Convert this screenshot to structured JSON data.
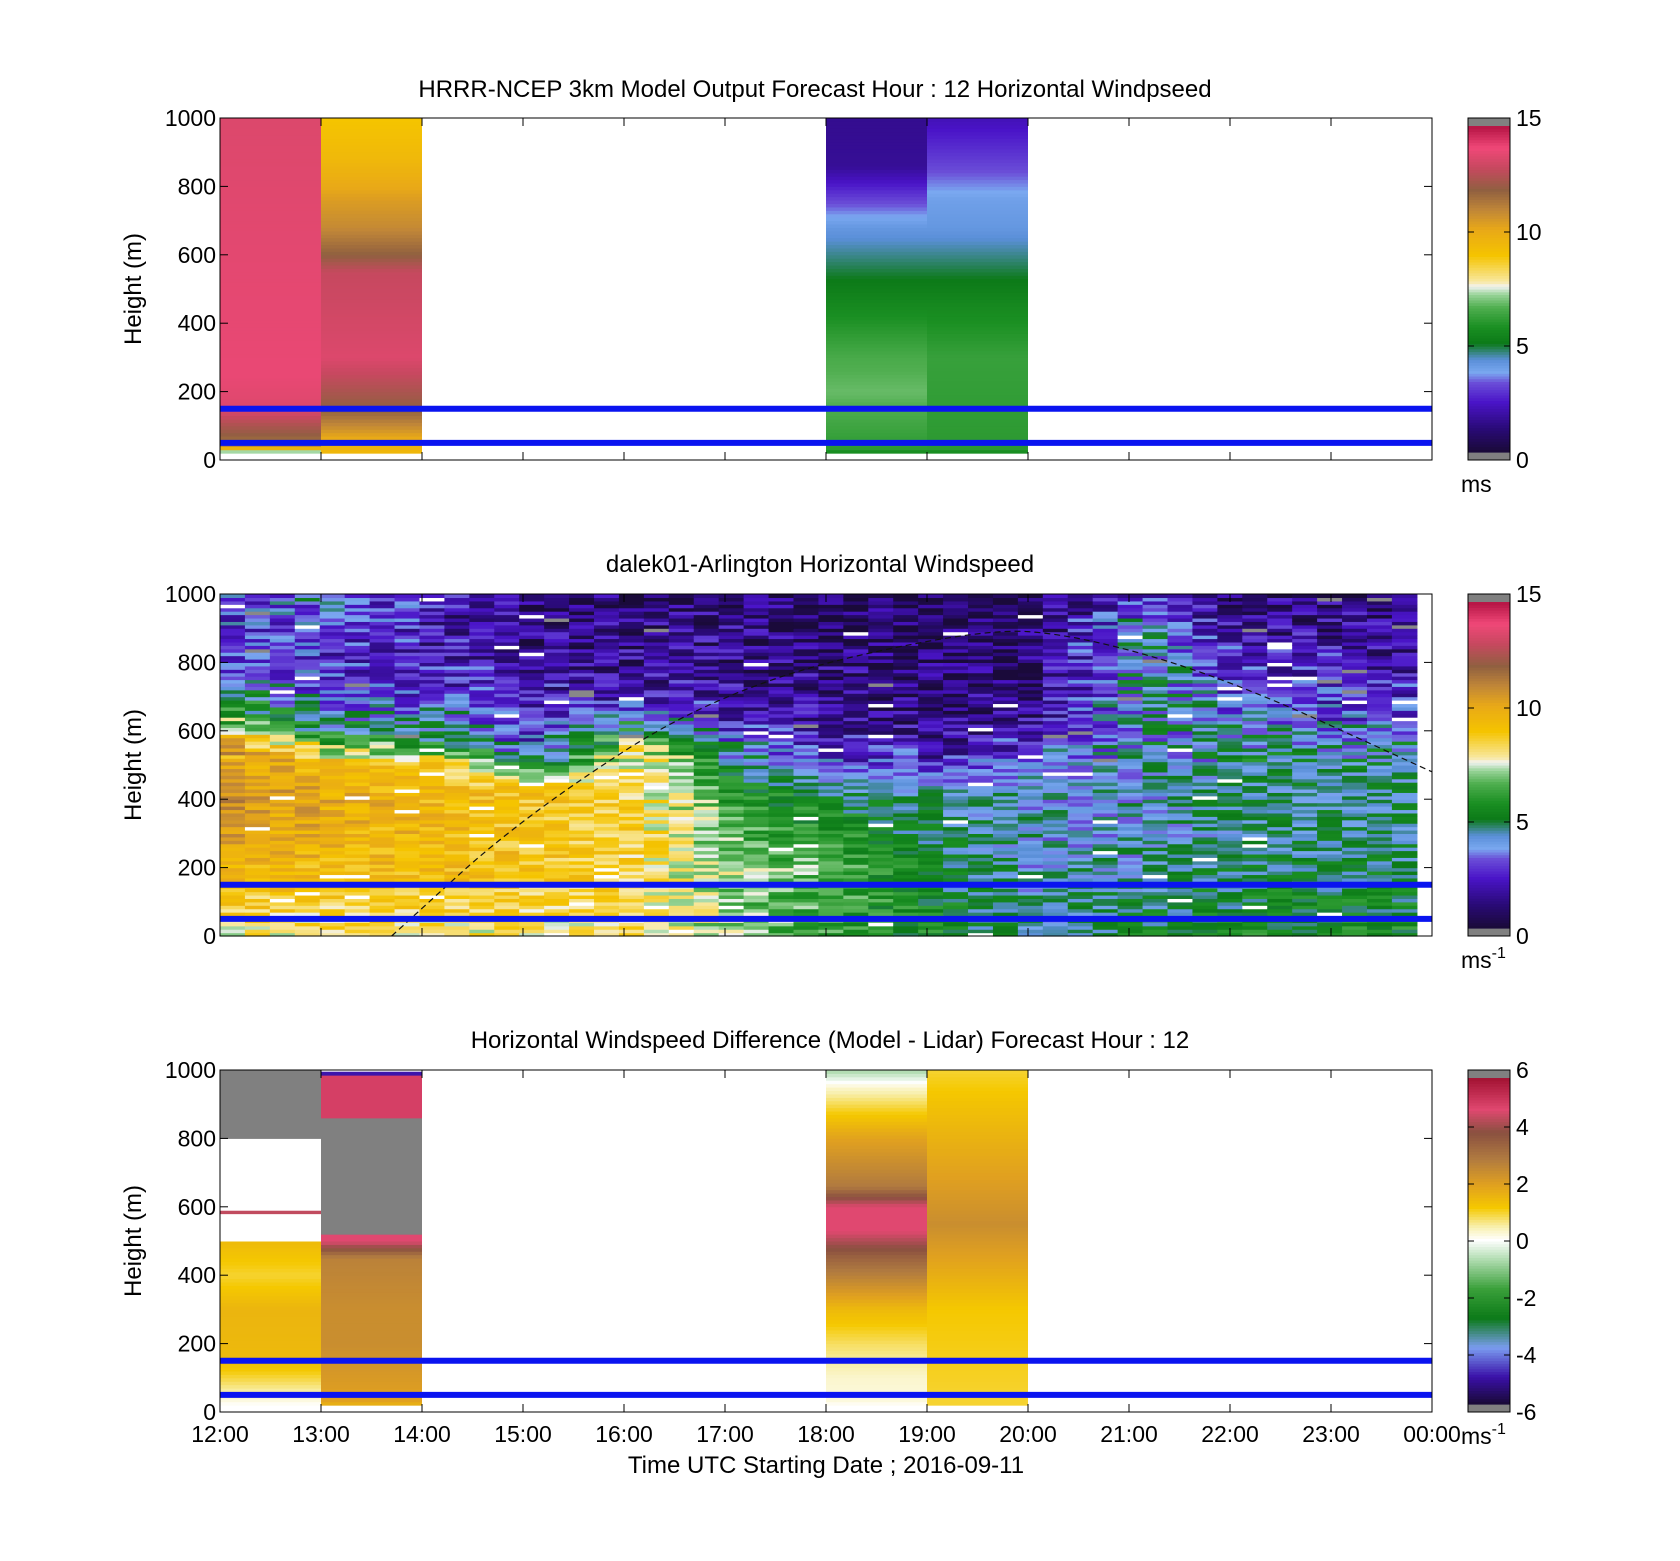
{
  "chart_data": [
    {
      "type": "heatmap",
      "title": "HRRR-NCEP 3km Model Output   Forecast Hour : 12 Horizontal Windpseed",
      "ylabel": "Height (m)",
      "xlabel": "",
      "ylim": [
        0,
        1000
      ],
      "yticks": [
        "0",
        "200",
        "400",
        "600",
        "800",
        "1000"
      ],
      "colorbar": {
        "ticks": [
          "0",
          "5",
          "10",
          "15"
        ],
        "range": [
          0,
          15
        ],
        "unit": "ms",
        "unit_sup": "",
        "palette": "speed"
      },
      "reference_lines_m": [
        150,
        50
      ],
      "cells": [
        {
          "t0": 0,
          "t1": 1,
          "profile": [
            [
              0,
              4
            ],
            [
              20,
              6
            ],
            [
              40,
              11
            ],
            [
              70,
              12
            ],
            [
              100,
              12.5
            ],
            [
              150,
              13.5
            ],
            [
              250,
              13.8
            ],
            [
              1000,
              13.5
            ]
          ]
        },
        {
          "t0": 1,
          "t1": 2,
          "profile": [
            [
              0,
              4
            ],
            [
              20,
              9.5
            ],
            [
              60,
              10
            ],
            [
              100,
              11
            ],
            [
              150,
              12
            ],
            [
              200,
              12.5
            ],
            [
              300,
              13.5
            ],
            [
              550,
              13
            ],
            [
              600,
              12
            ],
            [
              680,
              11
            ],
            [
              760,
              10.5
            ],
            [
              880,
              9.5
            ],
            [
              1000,
              9
            ]
          ]
        },
        {
          "t0": 6,
          "t1": 7,
          "profile": [
            [
              0,
              4
            ],
            [
              30,
              6
            ],
            [
              200,
              6.8
            ],
            [
              300,
              6.5
            ],
            [
              450,
              5.5
            ],
            [
              520,
              5
            ],
            [
              600,
              4.5
            ],
            [
              680,
              4
            ],
            [
              760,
              3
            ],
            [
              860,
              1.5
            ],
            [
              1000,
              1.4
            ]
          ]
        },
        {
          "t0": 7,
          "t1": 8,
          "profile": [
            [
              0,
              4
            ],
            [
              30,
              6
            ],
            [
              300,
              6.2
            ],
            [
              450,
              5.5
            ],
            [
              520,
              5
            ],
            [
              600,
              4.5
            ],
            [
              680,
              4
            ],
            [
              760,
              3.8
            ],
            [
              860,
              3
            ],
            [
              1000,
              2
            ]
          ]
        }
      ]
    },
    {
      "type": "heatmap",
      "title": "dalek01-Arlington  Horizontal Windspeed",
      "ylabel": "Height (m)",
      "xlabel": "",
      "ylim": [
        0,
        1000
      ],
      "yticks": [
        "0",
        "200",
        "400",
        "600",
        "800",
        "1000"
      ],
      "colorbar": {
        "ticks": [
          "0",
          "5",
          "10",
          "15"
        ],
        "range": [
          0,
          15
        ],
        "unit": "ms",
        "unit_sup": "-1",
        "palette": "speed"
      },
      "reference_lines_m": [
        150,
        50
      ],
      "boundary_layer_curve": [
        [
          1.7,
          0
        ],
        [
          3,
          350
        ],
        [
          5,
          730
        ],
        [
          7.5,
          900
        ],
        [
          8.5,
          880
        ],
        [
          10,
          750
        ],
        [
          12,
          480
        ]
      ],
      "lidar_columns_hourly": [
        [
          [
            0,
            8
          ],
          [
            200,
            9.5
          ],
          [
            400,
            11
          ],
          [
            580,
            10
          ],
          [
            620,
            7
          ],
          [
            700,
            5
          ],
          [
            800,
            3
          ],
          [
            1000,
            3
          ]
        ],
        [
          [
            0,
            8
          ],
          [
            200,
            9.5
          ],
          [
            400,
            10
          ],
          [
            500,
            9.5
          ],
          [
            600,
            5
          ],
          [
            700,
            3
          ],
          [
            800,
            2.5
          ],
          [
            1000,
            4
          ]
        ],
        [
          [
            0,
            8
          ],
          [
            200,
            9.5
          ],
          [
            400,
            9.5
          ],
          [
            500,
            9
          ],
          [
            580,
            5
          ],
          [
            700,
            3
          ],
          [
            850,
            2
          ],
          [
            1000,
            2
          ]
        ],
        [
          [
            0,
            8
          ],
          [
            200,
            9
          ],
          [
            430,
            9
          ],
          [
            470,
            7
          ],
          [
            550,
            3
          ],
          [
            800,
            1.5
          ],
          [
            1000,
            1
          ]
        ],
        [
          [
            0,
            8
          ],
          [
            200,
            8.5
          ],
          [
            400,
            8.5
          ],
          [
            550,
            8
          ],
          [
            620,
            5
          ],
          [
            700,
            2
          ],
          [
            1000,
            1
          ]
        ],
        [
          [
            0,
            7
          ],
          [
            200,
            7
          ],
          [
            400,
            6
          ],
          [
            550,
            4
          ],
          [
            650,
            2
          ],
          [
            1000,
            1
          ]
        ],
        [
          [
            0,
            6
          ],
          [
            200,
            6.5
          ],
          [
            400,
            5
          ],
          [
            500,
            3
          ],
          [
            620,
            1.5
          ],
          [
            1000,
            0.6
          ]
        ],
        [
          [
            0,
            5.5
          ],
          [
            200,
            5
          ],
          [
            400,
            4.5
          ],
          [
            500,
            2.5
          ],
          [
            650,
            1
          ],
          [
            1000,
            0.5
          ]
        ],
        [
          [
            0,
            4.5
          ],
          [
            200,
            4
          ],
          [
            450,
            4
          ],
          [
            550,
            3
          ],
          [
            650,
            1.5
          ],
          [
            1000,
            0.8
          ]
        ],
        [
          [
            0,
            5
          ],
          [
            300,
            4
          ],
          [
            600,
            4.2
          ],
          [
            750,
            4.5
          ],
          [
            900,
            4.5
          ],
          [
            1000,
            2
          ]
        ],
        [
          [
            0,
            5.5
          ],
          [
            300,
            4.5
          ],
          [
            550,
            4.5
          ],
          [
            700,
            3
          ],
          [
            850,
            2
          ],
          [
            1000,
            1
          ]
        ],
        [
          [
            0,
            5.5
          ],
          [
            300,
            4.5
          ],
          [
            550,
            4.5
          ],
          [
            650,
            3
          ],
          [
            800,
            2
          ],
          [
            1000,
            1
          ]
        ]
      ]
    },
    {
      "type": "heatmap",
      "title": "Horizontal Windspeed Difference (Model - Lidar) Forecast Hour : 12",
      "ylabel": "Height (m)",
      "xlabel": "Time UTC  Starting Date ; 2016-09-11",
      "ylim": [
        0,
        1000
      ],
      "yticks": [
        "0",
        "200",
        "400",
        "600",
        "800",
        "1000"
      ],
      "xticks": [
        "12:00",
        "13:00",
        "14:00",
        "15:00",
        "16:00",
        "17:00",
        "18:00",
        "19:00",
        "20:00",
        "21:00",
        "22:00",
        "23:00",
        "00:00"
      ],
      "colorbar": {
        "ticks": [
          "-6",
          "-4",
          "-2",
          "0",
          "2",
          "4",
          "6"
        ],
        "range": [
          -6,
          6
        ],
        "unit": "ms",
        "unit_sup": "-1",
        "palette": "diff"
      },
      "reference_lines_m": [
        150,
        50
      ],
      "cells": [
        {
          "t0": 0,
          "t1": 1,
          "profile": [
            [
              0,
              -1
            ],
            [
              20,
              0
            ],
            [
              60,
              0.5
            ],
            [
              150,
              1.5
            ],
            [
              300,
              1.6
            ],
            [
              400,
              1
            ],
            [
              500,
              1.5
            ]
          ],
          "above": [
            [
              500,
              590,
              "white"
            ],
            [
              580,
              590,
              4.5
            ],
            [
              590,
              800,
              "white"
            ],
            [
              800,
              1000,
              "gray"
            ]
          ]
        },
        {
          "t0": 1,
          "t1": 2,
          "profile": [
            [
              0,
              0.5
            ],
            [
              30,
              2
            ],
            [
              200,
              2.5
            ],
            [
              300,
              2.5
            ],
            [
              450,
              2.8
            ],
            [
              500,
              4.8
            ],
            [
              520,
              4.8
            ]
          ],
          "above": [
            [
              520,
              860,
              "gray"
            ],
            [
              860,
              990,
              5
            ],
            [
              985,
              995,
              -5
            ]
          ]
        },
        {
          "t0": 6,
          "t1": 7,
          "profile": [
            [
              0,
              -0.5
            ],
            [
              30,
              0.2
            ],
            [
              100,
              0.3
            ],
            [
              200,
              0.8
            ],
            [
              300,
              1.5
            ],
            [
              450,
              3.5
            ],
            [
              530,
              4.8
            ],
            [
              600,
              4.8
            ],
            [
              660,
              3
            ],
            [
              800,
              2
            ],
            [
              950,
              0.3
            ],
            [
              1000,
              -0.8
            ]
          ]
        },
        {
          "t0": 7,
          "t1": 8,
          "profile": [
            [
              0,
              1
            ],
            [
              30,
              1
            ],
            [
              300,
              1.2
            ],
            [
              450,
              2
            ],
            [
              550,
              2.5
            ],
            [
              700,
              2
            ],
            [
              850,
              1.5
            ],
            [
              1000,
              1
            ]
          ]
        }
      ]
    }
  ]
}
